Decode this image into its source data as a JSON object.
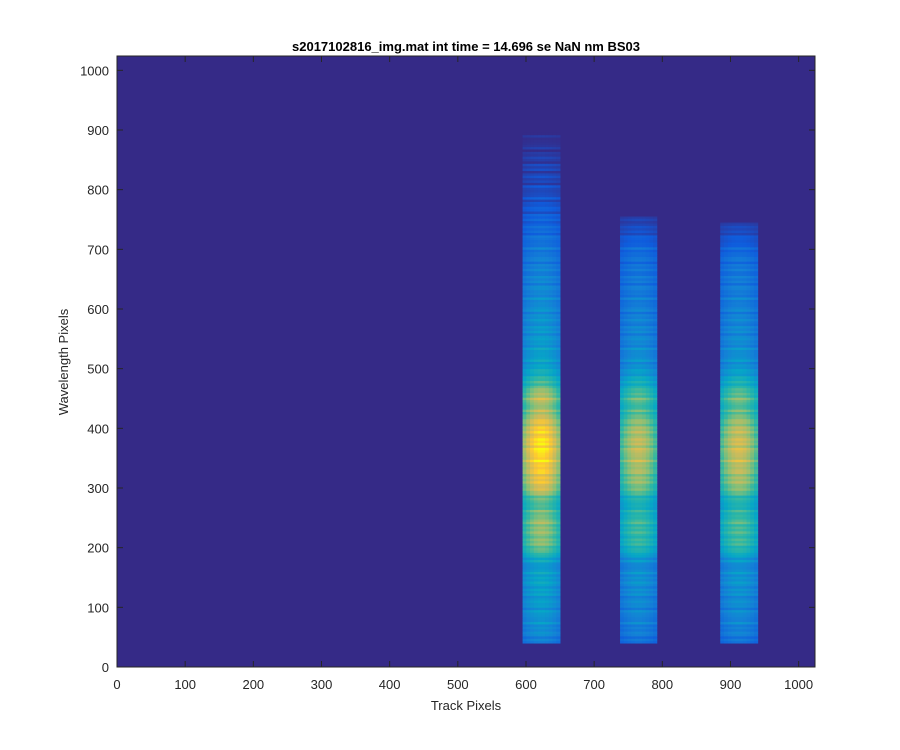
{
  "chart_data": {
    "type": "heatmap",
    "title": "s2017102816_img.mat int time = 14.696 se  NaN nm BS03",
    "xlabel": "Track Pixels",
    "ylabel": "Wavelength Pixels",
    "xlim": [
      0,
      1024
    ],
    "ylim": [
      0,
      1024
    ],
    "x_ticks": [
      0,
      100,
      200,
      300,
      400,
      500,
      600,
      700,
      800,
      900,
      1000
    ],
    "y_ticks": [
      0,
      100,
      200,
      300,
      400,
      500,
      600,
      700,
      800,
      900,
      1000
    ],
    "grid": false,
    "colormap": "parula",
    "colors": {
      "background": "#352a87",
      "low": "#352a87",
      "mid_low": "#0f5cdd",
      "mid": "#1481d6",
      "mid_high": "#2eb7a4",
      "high": "#d1bb59",
      "peak": "#f9fb0e"
    },
    "bands": [
      {
        "x_start": 595,
        "x_end": 650,
        "y_start": 40,
        "y_end": 895,
        "peak_intensity": 1.0
      },
      {
        "x_start": 738,
        "x_end": 792,
        "y_start": 40,
        "y_end": 755,
        "peak_intensity": 0.82
      },
      {
        "x_start": 885,
        "x_end": 940,
        "y_start": 40,
        "y_end": 745,
        "peak_intensity": 0.85
      }
    ],
    "intensity_profile": [
      {
        "y": 40,
        "v": 0.3
      },
      {
        "y": 60,
        "v": 0.36
      },
      {
        "y": 90,
        "v": 0.4
      },
      {
        "y": 120,
        "v": 0.42
      },
      {
        "y": 150,
        "v": 0.46
      },
      {
        "y": 170,
        "v": 0.4
      },
      {
        "y": 185,
        "v": 0.55
      },
      {
        "y": 200,
        "v": 0.7
      },
      {
        "y": 240,
        "v": 0.74
      },
      {
        "y": 275,
        "v": 0.62
      },
      {
        "y": 300,
        "v": 0.86
      },
      {
        "y": 340,
        "v": 0.95
      },
      {
        "y": 370,
        "v": 0.98
      },
      {
        "y": 400,
        "v": 0.92
      },
      {
        "y": 435,
        "v": 0.74
      },
      {
        "y": 450,
        "v": 0.82
      },
      {
        "y": 475,
        "v": 0.62
      },
      {
        "y": 500,
        "v": 0.46
      },
      {
        "y": 550,
        "v": 0.4
      },
      {
        "y": 600,
        "v": 0.36
      },
      {
        "y": 650,
        "v": 0.32
      },
      {
        "y": 700,
        "v": 0.27
      },
      {
        "y": 750,
        "v": 0.18
      },
      {
        "y": 800,
        "v": 0.1
      },
      {
        "y": 850,
        "v": 0.07
      },
      {
        "y": 900,
        "v": 0.03
      }
    ]
  }
}
